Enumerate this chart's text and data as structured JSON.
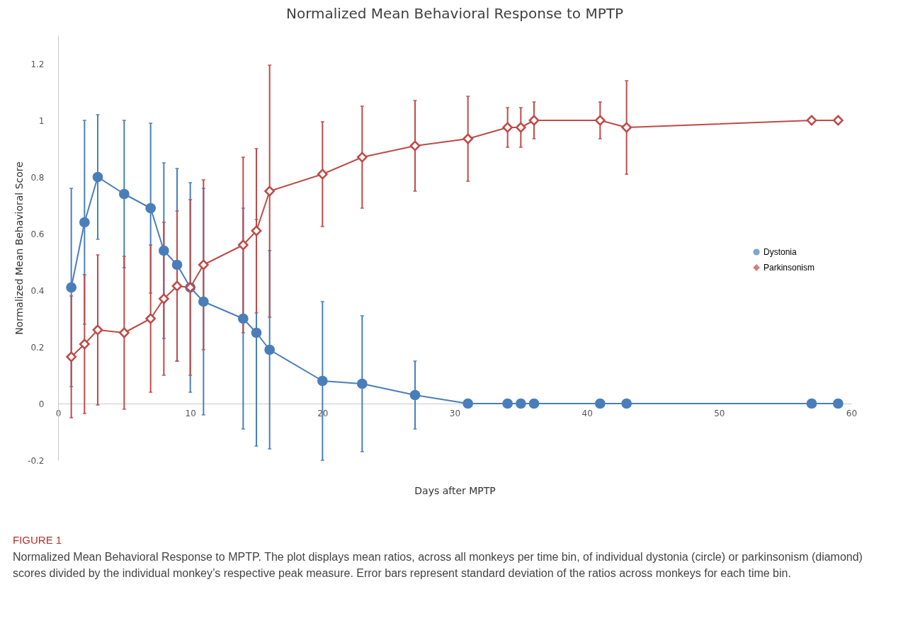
{
  "chart_data": {
    "type": "line",
    "title": "Normalized Mean Behavioral Response to MPTP",
    "xlabel": "Days after MPTP",
    "ylabel": "Normalized Mean Behavioral Score",
    "x": [
      1,
      2,
      3,
      5,
      7,
      8,
      9,
      10,
      11,
      14,
      15,
      16,
      20,
      23,
      27,
      31,
      34,
      35,
      36,
      41,
      43,
      57,
      59
    ],
    "series": [
      {
        "name": "Dystonia",
        "color": "#4a7ebb",
        "marker": "circle",
        "values": [
          0.41,
          0.64,
          0.8,
          0.74,
          0.69,
          0.54,
          0.49,
          0.41,
          0.36,
          0.3,
          0.25,
          0.19,
          0.08,
          0.07,
          0.03,
          0,
          0,
          0,
          0,
          0,
          0,
          0,
          0
        ],
        "errors": [
          0.35,
          0.36,
          0.22,
          0.26,
          0.3,
          0.31,
          0.34,
          0.37,
          0.4,
          0.39,
          0.4,
          0.35,
          0.28,
          0.24,
          0.12,
          null,
          null,
          null,
          null,
          null,
          null,
          null,
          null
        ]
      },
      {
        "name": "Parkinsonism",
        "color": "#be4b48",
        "marker": "diamond",
        "values": [
          0.165,
          0.21,
          0.26,
          0.25,
          0.3,
          0.37,
          0.415,
          0.41,
          0.49,
          0.56,
          0.61,
          0.75,
          0.81,
          0.87,
          0.91,
          0.935,
          0.975,
          0.975,
          1,
          1,
          0.975,
          1,
          1
        ],
        "errors": [
          0.215,
          0.245,
          0.265,
          0.27,
          0.26,
          0.27,
          0.265,
          0.31,
          0.3,
          0.31,
          0.29,
          0.445,
          0.185,
          0.18,
          0.16,
          0.15,
          0.07,
          0.07,
          0.065,
          0.065,
          0.165,
          null,
          null
        ]
      }
    ],
    "xlim": [
      0,
      60
    ],
    "xticks": [
      0,
      10,
      20,
      30,
      40,
      50,
      60
    ],
    "ylim": [
      -0.2,
      1.3
    ],
    "yticks": [
      -0.2,
      0,
      0.2,
      0.4,
      0.6,
      0.8,
      1,
      1.2
    ],
    "grid": false,
    "legend": "right",
    "annotations": [
      "FIGURE 1",
      "Normalized Mean Behavioral Response to MPTP. The plot displays mean ratios, across all monkeys per time bin, of individual dystonia (circle) or parkinsonism (diamond) scores divided by the individual monkey’s respective peak measure. Error bars represent standard deviation of the ratios across monkeys for each time bin."
    ]
  }
}
